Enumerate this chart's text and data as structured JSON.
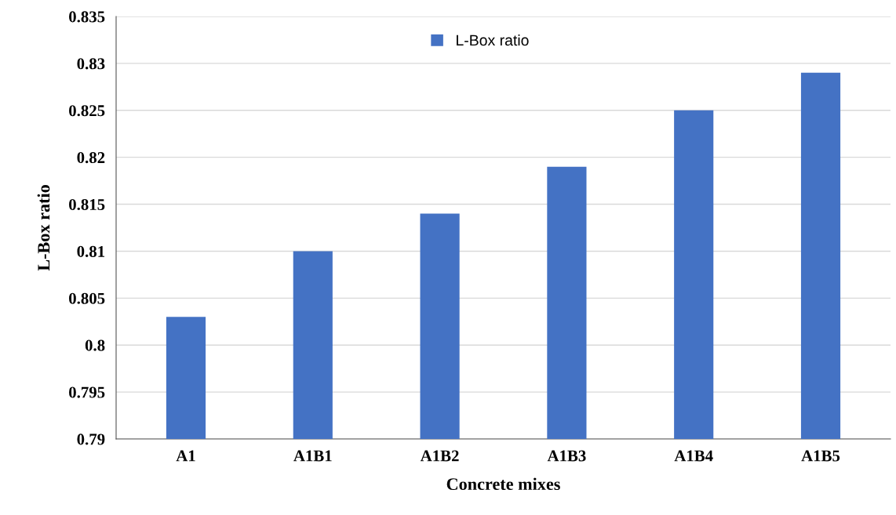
{
  "chart_data": {
    "type": "bar",
    "xlabel": "Concrete mixes",
    "ylabel": "L-Box ratio",
    "categories": [
      "A1",
      "A1B1",
      "A1B2",
      "A1B3",
      "A1B4",
      "A1B5"
    ],
    "series": [
      {
        "name": "L-Box ratio",
        "color": "#4472c4",
        "values": [
          0.803,
          0.81,
          0.814,
          0.819,
          0.825,
          0.829
        ]
      }
    ],
    "ylim": [
      0.79,
      0.835
    ],
    "yticks": [
      0.79,
      0.795,
      0.8,
      0.805,
      0.81,
      0.815,
      0.82,
      0.825,
      0.83,
      0.835
    ],
    "grid": "y",
    "legend": "top"
  }
}
